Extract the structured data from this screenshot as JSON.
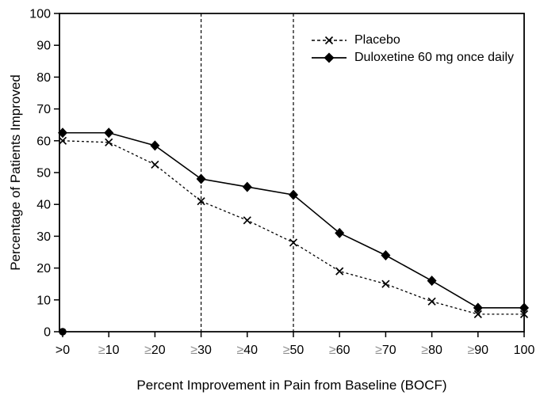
{
  "figure": {
    "background": "#ffffff",
    "line_color": "#000000",
    "tick_prefix_color": "#8c8c8c"
  },
  "chart_data": {
    "type": "line",
    "title": "",
    "xlabel": "Percent Improvement in Pain from Baseline (BOCF)",
    "ylabel": "Percentage of Patients Improved",
    "categories": [
      ">0",
      "≥10",
      "≥20",
      "≥30",
      "≥40",
      "≥50",
      "≥60",
      "≥70",
      "≥80",
      "≥90",
      "100"
    ],
    "y_ticks": [
      0,
      10,
      20,
      30,
      40,
      50,
      60,
      70,
      80,
      90,
      100
    ],
    "ylim": [
      0,
      100
    ],
    "grid": false,
    "legend": {
      "position": "top-right",
      "border": false
    },
    "reference_lines": {
      "style": "vertical-dashed",
      "at_categories": [
        "≥30",
        "≥50"
      ]
    },
    "origin_point": {
      "x": ">0",
      "y": 0,
      "marker": "filled-circle"
    },
    "series": [
      {
        "name": "Placebo",
        "line": "dashed",
        "marker": "x",
        "color": "#000000",
        "values": [
          60,
          59.5,
          52.5,
          41,
          35,
          28,
          19,
          15,
          9.5,
          5.5,
          5.5
        ]
      },
      {
        "name": "Duloxetine 60 mg once daily",
        "line": "solid",
        "marker": "diamond",
        "color": "#000000",
        "values": [
          62.5,
          62.5,
          58.5,
          48,
          45.5,
          43,
          31,
          24,
          16,
          7.5,
          7.5
        ]
      }
    ]
  }
}
